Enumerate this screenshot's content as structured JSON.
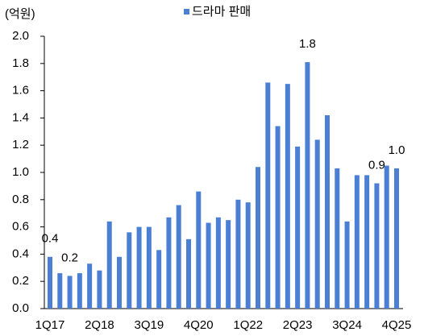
{
  "chart_data": {
    "type": "bar",
    "unit_label": "(억원)",
    "series": [
      {
        "name": "드라마 판매",
        "color": "#4a7fd4",
        "values": [
          0.38,
          0.26,
          0.24,
          0.26,
          0.33,
          0.28,
          0.64,
          0.38,
          0.56,
          0.6,
          0.6,
          0.43,
          0.67,
          0.76,
          0.51,
          0.86,
          0.63,
          0.67,
          0.65,
          0.8,
          0.78,
          1.04,
          1.66,
          1.34,
          1.65,
          1.19,
          1.81,
          1.24,
          1.42,
          1.03,
          0.64,
          0.98,
          0.98,
          0.92,
          1.05,
          1.03
        ],
        "value_labels": [
          "0.4",
          null,
          "0.2",
          null,
          null,
          null,
          null,
          null,
          null,
          null,
          null,
          null,
          null,
          null,
          null,
          null,
          null,
          null,
          null,
          null,
          null,
          null,
          null,
          null,
          null,
          null,
          "1.8",
          null,
          null,
          null,
          null,
          null,
          null,
          "0.9",
          null,
          "1.0"
        ]
      }
    ],
    "categories": [
      "1Q17",
      null,
      null,
      null,
      null,
      "2Q18",
      null,
      null,
      null,
      null,
      "3Q19",
      null,
      null,
      null,
      null,
      "4Q20",
      null,
      null,
      null,
      null,
      "1Q22",
      null,
      null,
      null,
      null,
      "2Q23",
      null,
      null,
      null,
      null,
      "3Q24",
      null,
      null,
      null,
      null,
      "4Q25"
    ],
    "ylim": [
      0,
      2
    ],
    "yticks": [
      {
        "value": 0,
        "label": "0.0"
      },
      0.2,
      0.4,
      0.6,
      0.8,
      {
        "value": 1,
        "label": "1.0"
      },
      1.2,
      1.4,
      1.6,
      1.8,
      {
        "value": 2,
        "label": "2.0"
      }
    ],
    "legend": "top"
  }
}
